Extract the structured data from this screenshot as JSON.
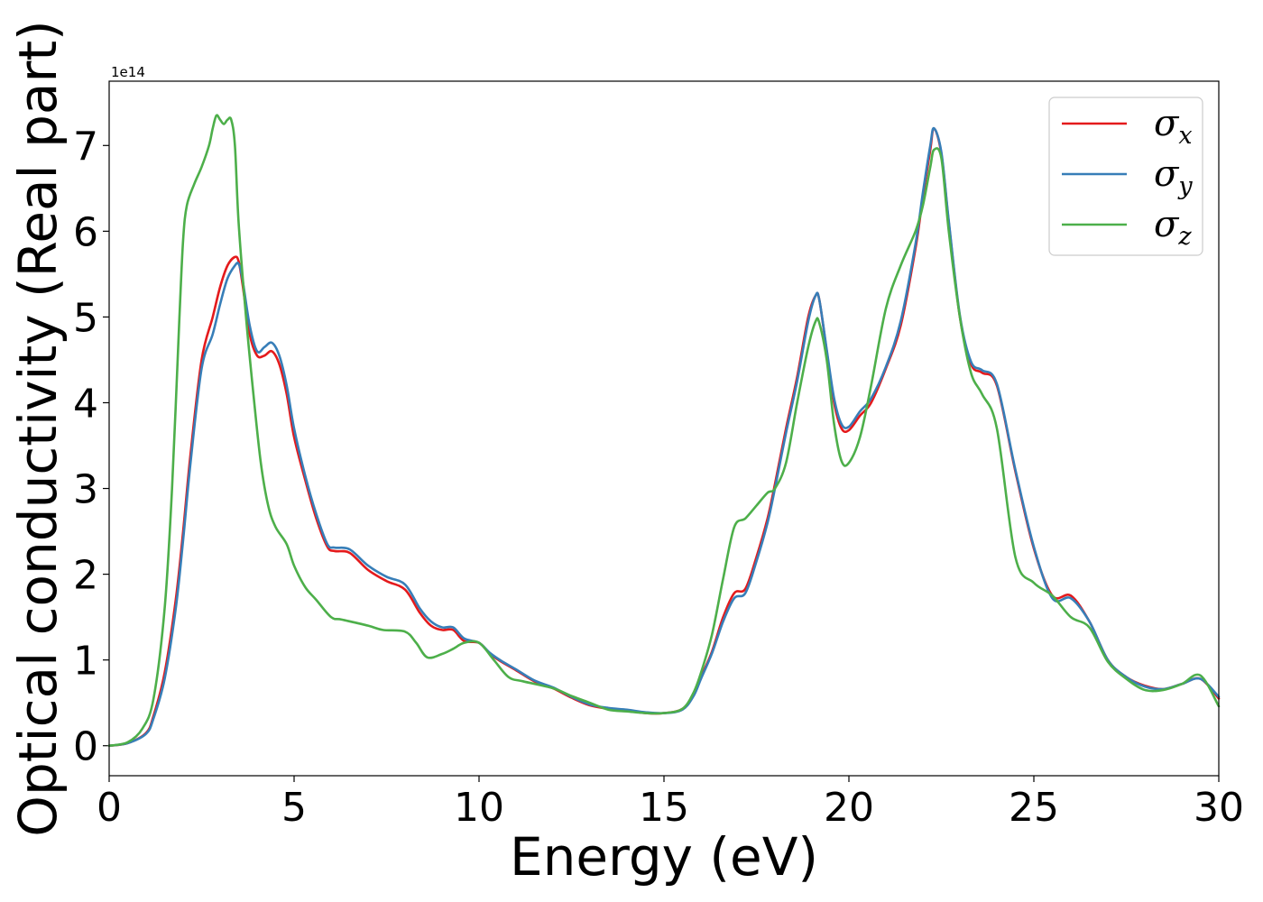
{
  "chart_data": {
    "type": "line",
    "xlabel": "Energy (eV)",
    "ylabel": "Optical conductivity (Real part)",
    "y_offset_label": "1e14",
    "xlim": [
      0,
      30
    ],
    "ylim": [
      -0.35,
      7.75
    ],
    "x_ticks": [
      0,
      5,
      10,
      15,
      20,
      25,
      30
    ],
    "x_tick_labels": [
      "0",
      "5",
      "10",
      "15",
      "20",
      "25",
      "30"
    ],
    "y_ticks": [
      0,
      1,
      2,
      3,
      4,
      5,
      6,
      7
    ],
    "y_tick_labels": [
      "0",
      "1",
      "2",
      "3",
      "4",
      "5",
      "6",
      "7"
    ],
    "grid": false,
    "legend_position": "top-right",
    "series": [
      {
        "name": "σx",
        "legend_symbol": "σ",
        "legend_subscript": "x",
        "color": "#e41a1c",
        "x": [
          0,
          0.5,
          1.0,
          1.2,
          1.5,
          1.8,
          2.0,
          2.2,
          2.5,
          2.8,
          3.0,
          3.2,
          3.4,
          3.5,
          3.6,
          3.8,
          4.0,
          4.2,
          4.4,
          4.6,
          4.8,
          5.0,
          5.3,
          5.6,
          5.9,
          6.1,
          6.5,
          7.0,
          7.5,
          8.0,
          8.4,
          8.7,
          9.0,
          9.3,
          9.6,
          10.0,
          10.3,
          10.6,
          11.0,
          11.5,
          12.0,
          12.5,
          13.0,
          13.5,
          14.0,
          14.5,
          15.0,
          15.5,
          15.8,
          16.0,
          16.3,
          16.6,
          16.9,
          17.2,
          17.5,
          17.8,
          18.0,
          18.3,
          18.6,
          18.9,
          19.1,
          19.2,
          19.4,
          19.6,
          19.8,
          20.0,
          20.3,
          20.6,
          21.0,
          21.4,
          21.8,
          22.0,
          22.2,
          22.3,
          22.5,
          22.7,
          23.0,
          23.3,
          23.6,
          24.0,
          24.5,
          25.0,
          25.5,
          26.0,
          26.5,
          27.0,
          27.5,
          28.0,
          28.5,
          29.0,
          29.5,
          30.0
        ],
        "y": [
          0.0,
          0.03,
          0.15,
          0.35,
          0.85,
          1.7,
          2.5,
          3.4,
          4.5,
          5.0,
          5.35,
          5.6,
          5.7,
          5.65,
          5.4,
          4.8,
          4.55,
          4.55,
          4.6,
          4.45,
          4.1,
          3.6,
          3.1,
          2.65,
          2.32,
          2.27,
          2.25,
          2.05,
          1.92,
          1.82,
          1.55,
          1.4,
          1.35,
          1.35,
          1.22,
          1.2,
          1.07,
          0.98,
          0.88,
          0.75,
          0.67,
          0.56,
          0.47,
          0.43,
          0.41,
          0.38,
          0.38,
          0.43,
          0.6,
          0.8,
          1.1,
          1.5,
          1.78,
          1.83,
          2.2,
          2.65,
          3.05,
          3.7,
          4.3,
          5.0,
          5.25,
          5.2,
          4.6,
          4.0,
          3.7,
          3.68,
          3.85,
          4.0,
          4.4,
          4.9,
          5.8,
          6.4,
          6.95,
          7.2,
          6.9,
          6.1,
          5.0,
          4.45,
          4.35,
          4.2,
          3.2,
          2.3,
          1.75,
          1.75,
          1.45,
          1.0,
          0.8,
          0.7,
          0.66,
          0.72,
          0.78,
          0.55
        ]
      },
      {
        "name": "σy",
        "legend_symbol": "σ",
        "legend_subscript": "y",
        "color": "#377eb8",
        "x": [
          0,
          0.5,
          1.0,
          1.2,
          1.5,
          1.8,
          2.0,
          2.2,
          2.5,
          2.8,
          3.0,
          3.2,
          3.4,
          3.5,
          3.6,
          3.8,
          4.0,
          4.2,
          4.4,
          4.6,
          4.8,
          5.0,
          5.3,
          5.6,
          5.9,
          6.1,
          6.5,
          7.0,
          7.5,
          8.0,
          8.4,
          8.7,
          9.0,
          9.3,
          9.6,
          10.0,
          10.3,
          10.6,
          11.0,
          11.5,
          12.0,
          12.5,
          13.0,
          13.5,
          14.0,
          14.5,
          15.0,
          15.5,
          15.8,
          16.0,
          16.3,
          16.6,
          16.9,
          17.2,
          17.5,
          17.8,
          18.0,
          18.3,
          18.6,
          18.9,
          19.1,
          19.2,
          19.4,
          19.6,
          19.8,
          20.0,
          20.3,
          20.6,
          21.0,
          21.4,
          21.8,
          22.0,
          22.2,
          22.3,
          22.5,
          22.7,
          23.0,
          23.3,
          23.6,
          24.0,
          24.5,
          25.0,
          25.5,
          26.0,
          26.5,
          27.0,
          27.5,
          28.0,
          28.5,
          29.0,
          29.5,
          30.0
        ],
        "y": [
          0.0,
          0.03,
          0.14,
          0.32,
          0.78,
          1.6,
          2.4,
          3.3,
          4.4,
          4.8,
          5.15,
          5.45,
          5.6,
          5.62,
          5.45,
          4.9,
          4.6,
          4.65,
          4.7,
          4.55,
          4.2,
          3.7,
          3.15,
          2.7,
          2.35,
          2.31,
          2.29,
          2.1,
          1.97,
          1.88,
          1.6,
          1.45,
          1.38,
          1.38,
          1.25,
          1.2,
          1.08,
          0.99,
          0.89,
          0.76,
          0.68,
          0.57,
          0.48,
          0.44,
          0.42,
          0.39,
          0.38,
          0.42,
          0.58,
          0.78,
          1.08,
          1.45,
          1.72,
          1.78,
          2.15,
          2.6,
          3.0,
          3.65,
          4.25,
          4.95,
          5.25,
          5.2,
          4.62,
          4.05,
          3.75,
          3.72,
          3.9,
          4.05,
          4.42,
          4.95,
          5.85,
          6.45,
          7.0,
          7.2,
          6.92,
          6.12,
          5.02,
          4.48,
          4.38,
          4.22,
          3.22,
          2.32,
          1.72,
          1.72,
          1.45,
          1.0,
          0.8,
          0.69,
          0.66,
          0.72,
          0.78,
          0.57
        ]
      },
      {
        "name": "σz",
        "legend_symbol": "σ",
        "legend_subscript": "z",
        "color": "#4daf4a",
        "x": [
          0,
          0.5,
          0.9,
          1.2,
          1.5,
          1.7,
          1.9,
          2.0,
          2.1,
          2.3,
          2.5,
          2.7,
          2.8,
          2.9,
          3.0,
          3.1,
          3.2,
          3.3,
          3.4,
          3.5,
          3.7,
          3.9,
          4.1,
          4.3,
          4.5,
          4.8,
          5.0,
          5.3,
          5.6,
          6.0,
          6.3,
          7.0,
          7.4,
          8.0,
          8.3,
          8.6,
          9.0,
          9.3,
          9.6,
          10.0,
          10.4,
          10.8,
          11.2,
          12.0,
          12.5,
          13.0,
          13.5,
          14.0,
          14.5,
          15.0,
          15.5,
          15.8,
          16.0,
          16.3,
          16.6,
          16.9,
          17.2,
          17.5,
          17.8,
          18.0,
          18.3,
          18.6,
          18.9,
          19.1,
          19.2,
          19.4,
          19.6,
          19.8,
          20.0,
          20.3,
          20.6,
          21.0,
          21.4,
          21.8,
          22.0,
          22.2,
          22.3,
          22.5,
          22.7,
          23.0,
          23.3,
          23.6,
          24.0,
          24.5,
          25.0,
          25.5,
          26.0,
          26.5,
          27.0,
          27.5,
          28.0,
          28.5,
          29.0,
          29.5,
          30.0
        ],
        "y": [
          0.0,
          0.04,
          0.2,
          0.55,
          1.6,
          3.0,
          5.0,
          5.9,
          6.3,
          6.55,
          6.75,
          7.0,
          7.2,
          7.35,
          7.3,
          7.25,
          7.3,
          7.3,
          7.0,
          6.1,
          5.0,
          4.1,
          3.3,
          2.8,
          2.55,
          2.35,
          2.1,
          1.85,
          1.7,
          1.5,
          1.47,
          1.4,
          1.35,
          1.33,
          1.2,
          1.03,
          1.07,
          1.13,
          1.2,
          1.2,
          1.0,
          0.8,
          0.75,
          0.67,
          0.58,
          0.5,
          0.42,
          0.4,
          0.38,
          0.38,
          0.43,
          0.62,
          0.85,
          1.3,
          1.95,
          2.55,
          2.65,
          2.8,
          2.95,
          3.0,
          3.3,
          4.0,
          4.65,
          4.95,
          4.93,
          4.5,
          3.75,
          3.32,
          3.3,
          3.6,
          4.2,
          5.1,
          5.6,
          6.0,
          6.3,
          6.75,
          6.95,
          6.85,
          6.0,
          5.0,
          4.35,
          4.1,
          3.7,
          2.2,
          1.9,
          1.75,
          1.5,
          1.38,
          0.98,
          0.78,
          0.65,
          0.65,
          0.72,
          0.82,
          0.46
        ]
      }
    ]
  }
}
